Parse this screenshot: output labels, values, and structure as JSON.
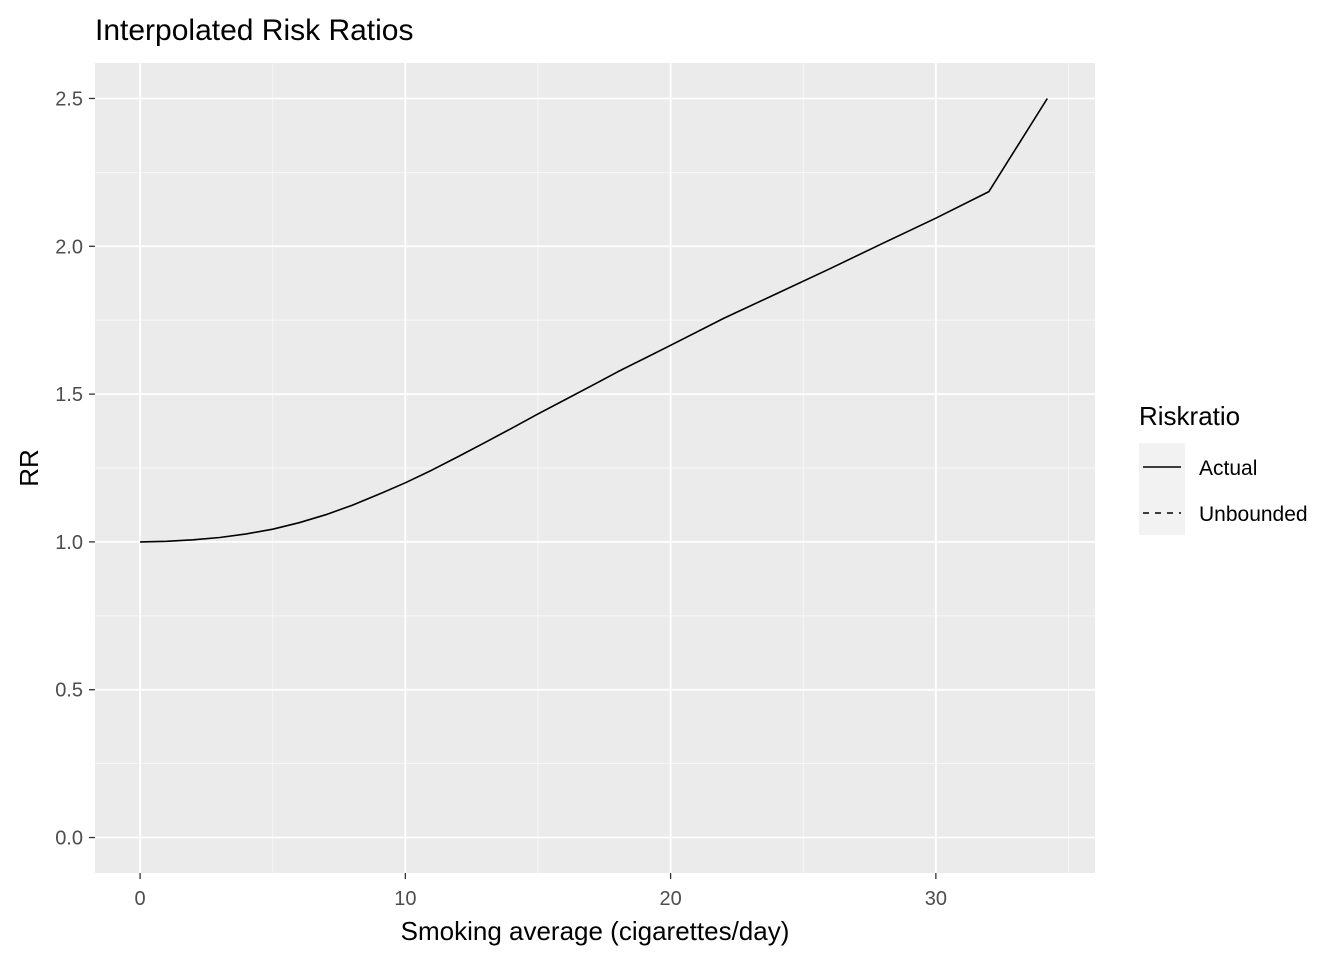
{
  "chart_data": {
    "type": "line",
    "title": "Interpolated Risk Ratios",
    "xlabel": "Smoking average (cigarettes/day)",
    "ylabel": "RR",
    "xlim": [
      -1.7,
      36.0
    ],
    "ylim": [
      -0.12,
      2.62
    ],
    "x_ticks": [
      0,
      10,
      20,
      30
    ],
    "x_tick_labels": [
      "0",
      "10",
      "20",
      "30"
    ],
    "y_ticks": [
      0.0,
      0.5,
      1.0,
      1.5,
      2.0,
      2.5
    ],
    "y_tick_labels": [
      "0.0",
      "0.5",
      "1.0",
      "1.5",
      "2.0",
      "2.5"
    ],
    "grid": true,
    "legend": {
      "title": "Riskratio",
      "placement": "right",
      "entries": [
        {
          "label": "Actual",
          "linetype": "solid"
        },
        {
          "label": "Unbounded",
          "linetype": "dashed"
        }
      ]
    },
    "series": [
      {
        "name": "Actual",
        "linetype": "solid",
        "color": "#000000",
        "x": [
          0,
          1,
          2,
          3,
          4,
          5,
          6,
          7,
          8,
          9,
          10,
          11,
          12,
          13,
          14,
          15,
          16,
          17,
          18,
          19,
          20,
          22,
          24,
          26,
          28,
          30,
          32,
          34.2
        ],
        "y": [
          1.0,
          1.002,
          1.007,
          1.015,
          1.027,
          1.043,
          1.065,
          1.092,
          1.124,
          1.161,
          1.2,
          1.243,
          1.289,
          1.336,
          1.384,
          1.433,
          1.48,
          1.527,
          1.575,
          1.62,
          1.665,
          1.756,
          1.84,
          1.924,
          2.01,
          2.095,
          2.185,
          2.5
        ]
      }
    ]
  },
  "colors": {
    "panel_background": "#ebebeb",
    "grid_line": "#ffffff",
    "legend_key_background": "#f2f2f2",
    "tick_text": "#4d4d4d",
    "line": "#000000"
  }
}
